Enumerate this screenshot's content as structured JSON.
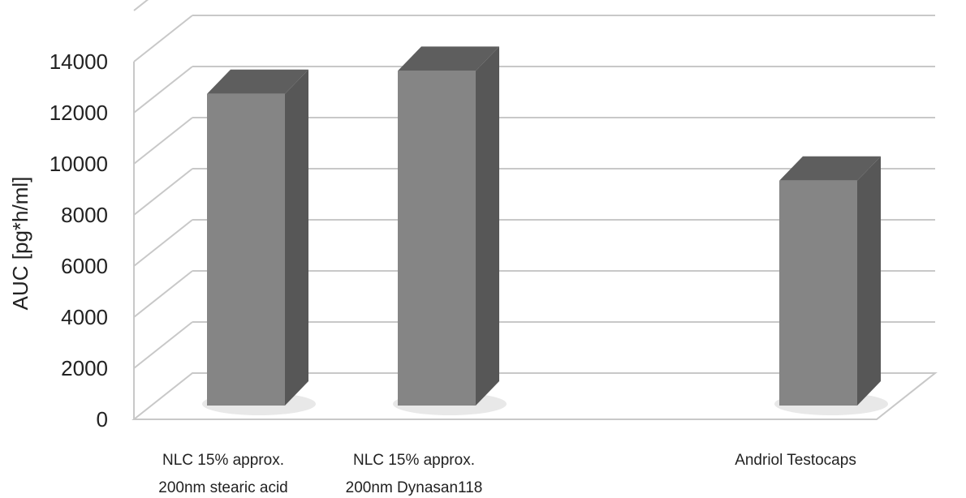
{
  "chart_data": {
    "type": "bar",
    "style": "3d-column",
    "categories": [
      [
        "NLC 15%    approx.",
        "200nm stearic acid"
      ],
      [
        "NLC 15%    approx.",
        "200nm Dynasan118"
      ],
      [],
      [
        "Andriol Testocaps"
      ]
    ],
    "values": [
      12200,
      13100,
      null,
      8800
    ],
    "xlabel": "",
    "ylabel": "AUC [pg*h/ml]",
    "ylim": [
      0,
      14000
    ],
    "ytick_step": 2000,
    "grid": true,
    "legend": "none",
    "colors": {
      "front": "#858585",
      "top": "#5e5e5e",
      "side": "#575757",
      "grid": "#c8c8c8",
      "floor_shadow": "#e8e8e8"
    }
  }
}
